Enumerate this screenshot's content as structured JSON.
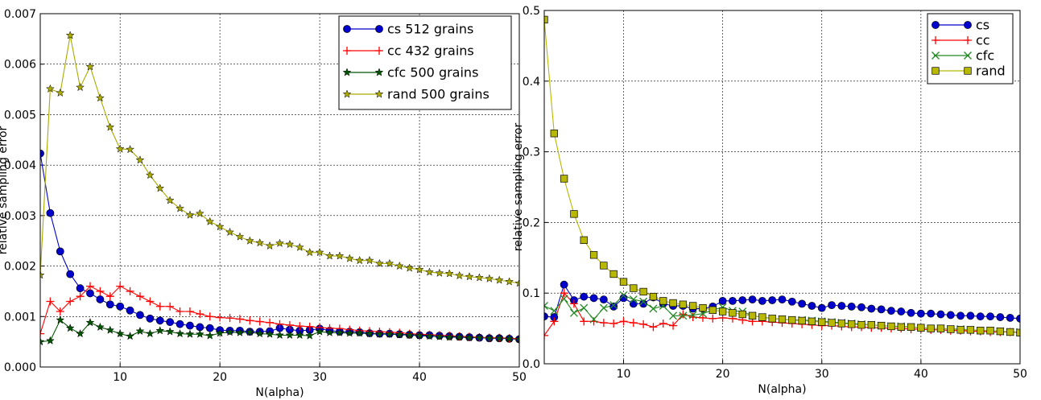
{
  "chart_data": [
    {
      "type": "line",
      "xlabel": "N(alpha)",
      "ylabel": "relative sampling error",
      "xlim": [
        2,
        50
      ],
      "ylim": [
        0,
        0.007
      ],
      "xticks": [
        "10",
        "20",
        "30",
        "40",
        "50"
      ],
      "yticks": [
        "0.000",
        "0.001",
        "0.002",
        "0.003",
        "0.004",
        "0.005",
        "0.006",
        "0.007"
      ],
      "grid": true,
      "legend": "top-right",
      "x": [
        2,
        3,
        4,
        5,
        6,
        7,
        8,
        9,
        10,
        11,
        12,
        13,
        14,
        15,
        16,
        17,
        18,
        19,
        20,
        21,
        22,
        23,
        24,
        25,
        26,
        27,
        28,
        29,
        30,
        31,
        32,
        33,
        34,
        35,
        36,
        37,
        38,
        39,
        40,
        41,
        42,
        43,
        44,
        45,
        46,
        47,
        48,
        49,
        50
      ],
      "series": [
        {
          "name": "cs 512 grains",
          "color": "#0000cc",
          "marker": "circle",
          "values": [
            0.00423,
            0.00305,
            0.00229,
            0.00184,
            0.00156,
            0.00146,
            0.00134,
            0.00124,
            0.0012,
            0.00112,
            0.00103,
            0.00096,
            0.00092,
            0.00089,
            0.00085,
            0.00082,
            0.00079,
            0.00077,
            0.00073,
            0.00072,
            0.00072,
            0.0007,
            0.0007,
            0.00071,
            0.00077,
            0.00074,
            0.00072,
            0.00073,
            0.00076,
            0.00072,
            0.0007,
            0.0007,
            0.00069,
            0.00067,
            0.00066,
            0.00066,
            0.00065,
            0.00064,
            0.00063,
            0.00063,
            0.00062,
            0.00061,
            0.0006,
            0.00059,
            0.00058,
            0.00057,
            0.00057,
            0.00056,
            0.00055
          ]
        },
        {
          "name": "cc 432 grains",
          "color": "#ff0000",
          "marker": "plus",
          "values": [
            0.00066,
            0.0013,
            0.0011,
            0.0013,
            0.0014,
            0.0016,
            0.0015,
            0.0014,
            0.0016,
            0.0015,
            0.0014,
            0.0013,
            0.0012,
            0.0012,
            0.0011,
            0.0011,
            0.00105,
            0.001,
            0.00098,
            0.00097,
            0.00095,
            0.00092,
            0.0009,
            0.00088,
            0.00085,
            0.00083,
            0.00081,
            0.0008,
            0.00078,
            0.00077,
            0.00076,
            0.00074,
            0.00072,
            0.00071,
            0.0007,
            0.00069,
            0.00068,
            0.00066,
            0.00065,
            0.00064,
            0.00063,
            0.00062,
            0.00061,
            0.0006,
            0.00059,
            0.00058,
            0.00058,
            0.00057,
            0.00056
          ]
        },
        {
          "name": "cfc 500 grains",
          "color": "#005500",
          "marker": "star",
          "values": [
            0.0005,
            0.00052,
            0.00093,
            0.00077,
            0.00066,
            0.00088,
            0.00079,
            0.00073,
            0.00066,
            0.00061,
            0.00071,
            0.00066,
            0.00072,
            0.0007,
            0.00066,
            0.00065,
            0.00065,
            0.00062,
            0.00067,
            0.00069,
            0.00068,
            0.00069,
            0.00066,
            0.00065,
            0.00063,
            0.00063,
            0.00063,
            0.00062,
            0.0007,
            0.00068,
            0.00068,
            0.00067,
            0.00067,
            0.00066,
            0.00065,
            0.00065,
            0.00064,
            0.00063,
            0.00062,
            0.00061,
            0.0006,
            0.00059,
            0.00059,
            0.00058,
            0.00058,
            0.00057,
            0.00057,
            0.00056,
            0.00055
          ]
        },
        {
          "name": "rand 500 grains",
          "color": "#aaaa00",
          "marker": "star",
          "values": [
            0.00182,
            0.00551,
            0.00543,
            0.00657,
            0.00554,
            0.00595,
            0.00533,
            0.00475,
            0.00432,
            0.00431,
            0.0041,
            0.0038,
            0.00354,
            0.0033,
            0.00314,
            0.00301,
            0.00304,
            0.00288,
            0.00278,
            0.00267,
            0.00258,
            0.0025,
            0.00246,
            0.0024,
            0.00245,
            0.00243,
            0.00237,
            0.00227,
            0.00227,
            0.0022,
            0.0022,
            0.00215,
            0.00211,
            0.00211,
            0.00205,
            0.00205,
            0.002,
            0.00196,
            0.00193,
            0.00188,
            0.00186,
            0.00185,
            0.00181,
            0.00179,
            0.00177,
            0.00175,
            0.00172,
            0.00169,
            0.00166
          ]
        }
      ]
    },
    {
      "type": "line",
      "xlabel": "N(alpha)",
      "ylabel": "relative sampling error",
      "xlim": [
        2,
        50
      ],
      "ylim": [
        0,
        0.5
      ],
      "xticks": [
        "10",
        "20",
        "30",
        "40",
        "50"
      ],
      "yticks": [
        "0.0",
        "0.1",
        "0.2",
        "0.3",
        "0.4",
        "0.5"
      ],
      "grid": true,
      "legend": "top-right",
      "x": [
        2,
        3,
        4,
        5,
        6,
        7,
        8,
        9,
        10,
        11,
        12,
        13,
        14,
        15,
        16,
        17,
        18,
        19,
        20,
        21,
        22,
        23,
        24,
        25,
        26,
        27,
        28,
        29,
        30,
        31,
        32,
        33,
        34,
        35,
        36,
        37,
        38,
        39,
        40,
        41,
        42,
        43,
        44,
        45,
        46,
        47,
        48,
        49,
        50
      ],
      "series": [
        {
          "name": "cs",
          "color": "#0000cc",
          "marker": "circle",
          "values": [
            0.067,
            0.066,
            0.112,
            0.09,
            0.095,
            0.093,
            0.091,
            0.081,
            0.093,
            0.085,
            0.085,
            0.094,
            0.085,
            0.082,
            0.082,
            0.078,
            0.078,
            0.081,
            0.089,
            0.089,
            0.09,
            0.091,
            0.089,
            0.09,
            0.091,
            0.088,
            0.085,
            0.082,
            0.079,
            0.083,
            0.082,
            0.081,
            0.08,
            0.078,
            0.077,
            0.075,
            0.074,
            0.072,
            0.071,
            0.071,
            0.07,
            0.069,
            0.068,
            0.068,
            0.067,
            0.067,
            0.066,
            0.065,
            0.064
          ]
        },
        {
          "name": "cc",
          "color": "#ff0000",
          "marker": "plus",
          "values": [
            0.04,
            0.06,
            0.1,
            0.085,
            0.06,
            0.06,
            0.058,
            0.057,
            0.06,
            0.058,
            0.056,
            0.052,
            0.057,
            0.054,
            0.07,
            0.066,
            0.065,
            0.064,
            0.065,
            0.064,
            0.062,
            0.06,
            0.06,
            0.059,
            0.058,
            0.057,
            0.056,
            0.055,
            0.054,
            0.054,
            0.053,
            0.052,
            0.052,
            0.051,
            0.051,
            0.05,
            0.05,
            0.049,
            0.049,
            0.048,
            0.048,
            0.047,
            0.047,
            0.046,
            0.046,
            0.045,
            0.045,
            0.045,
            0.044
          ]
        },
        {
          "name": "cfc",
          "color": "#228822",
          "marker": "x",
          "values": [
            0.082,
            0.075,
            0.092,
            0.072,
            0.079,
            0.063,
            0.079,
            0.083,
            0.097,
            0.091,
            0.088,
            0.078,
            0.082,
            0.068,
            0.068,
            0.069,
            0.071,
            0.076,
            0.08,
            0.075,
            0.074,
            0.068,
            0.066,
            0.064,
            0.063,
            0.062,
            0.062,
            0.061,
            0.06,
            0.059,
            0.058,
            0.057,
            0.056,
            0.055,
            0.054,
            0.053,
            0.053,
            0.052,
            0.051,
            0.05,
            0.05,
            0.049,
            0.049,
            0.048,
            0.047,
            0.047,
            0.046,
            0.045,
            0.045
          ]
        },
        {
          "name": "rand",
          "color": "#b8b800",
          "marker": "square",
          "values": [
            0.487,
            0.326,
            0.262,
            0.212,
            0.175,
            0.154,
            0.139,
            0.127,
            0.116,
            0.107,
            0.102,
            0.095,
            0.089,
            0.086,
            0.084,
            0.082,
            0.079,
            0.076,
            0.074,
            0.072,
            0.07,
            0.068,
            0.066,
            0.064,
            0.063,
            0.062,
            0.061,
            0.06,
            0.059,
            0.058,
            0.057,
            0.056,
            0.055,
            0.055,
            0.054,
            0.053,
            0.052,
            0.052,
            0.051,
            0.05,
            0.05,
            0.049,
            0.048,
            0.048,
            0.047,
            0.047,
            0.046,
            0.045,
            0.044
          ]
        }
      ]
    }
  ]
}
